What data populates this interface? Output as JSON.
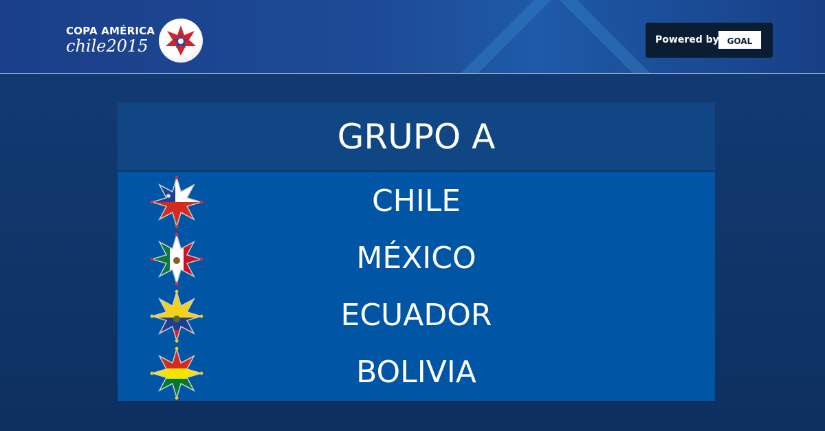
{
  "header": {
    "logo_line1": "COPA AMÉRICA",
    "logo_line2": "chile2015",
    "powered_by": "Powered by",
    "goal_logo": "GOAL"
  },
  "group": {
    "title": "GRUPO A",
    "teams": [
      {
        "name": "CHILE",
        "flag": "chile-flag-star",
        "dot_color": "#e02a3a"
      },
      {
        "name": "MÉXICO",
        "flag": "mexico-flag-star",
        "dot_color": "#e02a3a"
      },
      {
        "name": "ECUADOR",
        "flag": "ecuador-flag-star",
        "dot_color": "#f5d21a"
      },
      {
        "name": "BOLIVIA",
        "flag": "bolivia-flag-star",
        "dot_color": "#f5d21a"
      }
    ]
  }
}
